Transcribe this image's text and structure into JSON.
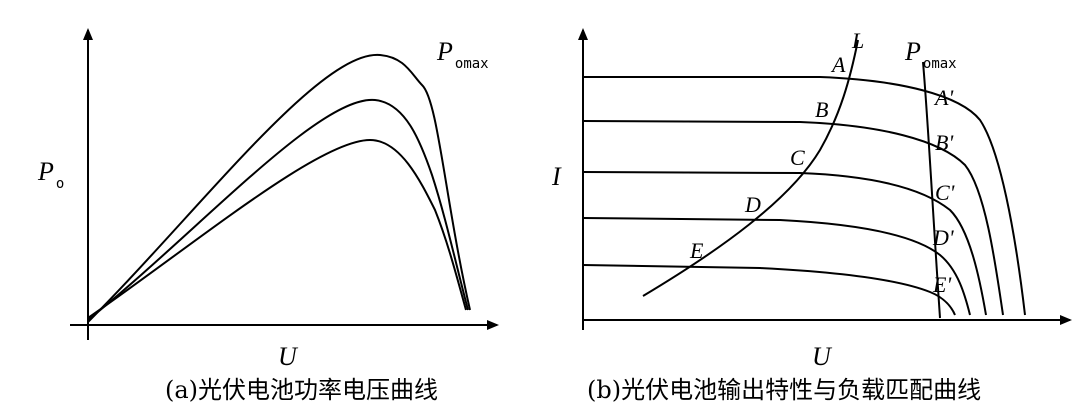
{
  "panels": [
    {
      "y_label": "P",
      "y_label_sub": "o",
      "x_label": "U",
      "curve_label": "P",
      "curve_label_sub": "omax",
      "caption": "(a)光伏电池功率电压曲线"
    },
    {
      "y_label": "I",
      "x_label": "U",
      "load_line_label": "L",
      "curve_label": "P",
      "curve_label_sub": "omax",
      "points": [
        "A",
        "B",
        "C",
        "D",
        "E"
      ],
      "points_prime": [
        "A'",
        "B'",
        "C'",
        "D'",
        "E'"
      ],
      "caption": "(b)光伏电池输出特性与负载匹配曲线"
    }
  ]
}
